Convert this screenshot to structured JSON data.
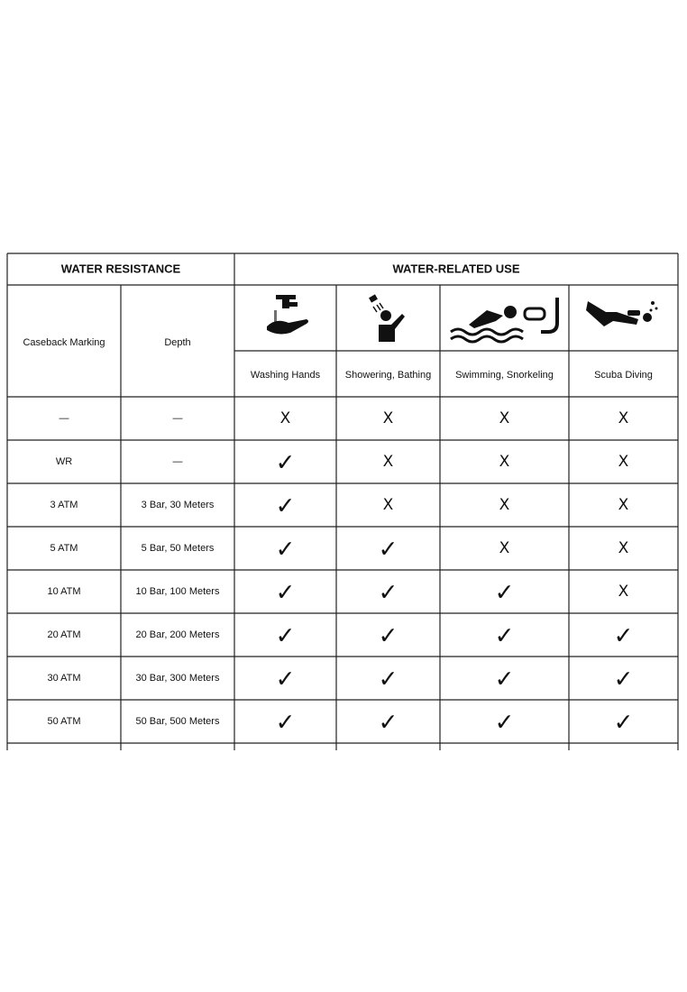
{
  "table": {
    "groups": [
      "WATER RESISTANCE",
      "WATER-RELATED USE"
    ],
    "headers": [
      "Caseback Marking",
      "Depth",
      "Washing Hands",
      "Showering, Bathing",
      "Swimming, Snorkeling",
      "Scuba Diving"
    ],
    "rows": [
      [
        "—",
        "—",
        "X",
        "X",
        "X",
        "X"
      ],
      [
        "WR",
        "—",
        "✓",
        "X",
        "X",
        "X"
      ],
      [
        "3 ATM",
        "3 Bar, 30 Meters",
        "✓",
        "X",
        "X",
        "X"
      ],
      [
        "5 ATM",
        "5 Bar, 50 Meters",
        "✓",
        "✓",
        "X",
        "X"
      ],
      [
        "10 ATM",
        "10 Bar, 100 Meters",
        "✓",
        "✓",
        "✓",
        "X"
      ],
      [
        "20 ATM",
        "20 Bar, 200 Meters",
        "✓",
        "✓",
        "✓",
        "✓"
      ],
      [
        "30 ATM",
        "30 Bar, 300 Meters",
        "✓",
        "✓",
        "✓",
        "✓"
      ],
      [
        "50 ATM",
        "50 Bar, 500 Meters",
        "✓",
        "✓",
        "✓",
        "✓"
      ]
    ]
  }
}
